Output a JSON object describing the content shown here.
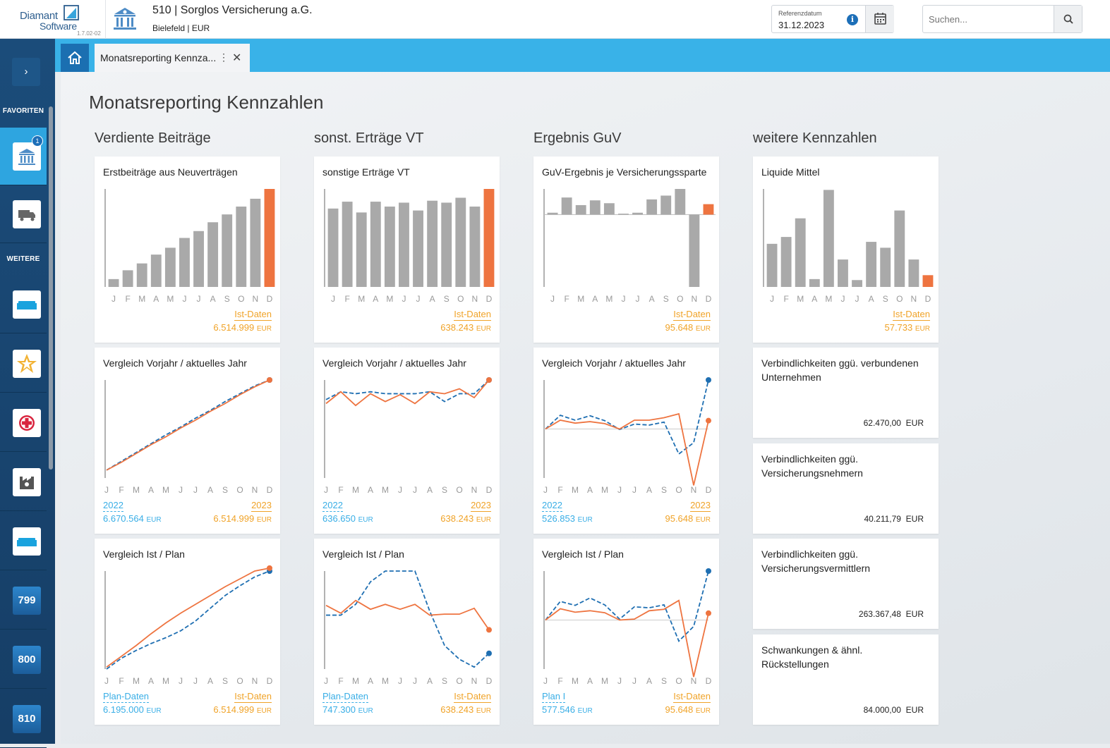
{
  "header": {
    "logo_line1": "Diamant",
    "logo_line2": "Software",
    "version": "1.7.02-02",
    "company_title": "510 | Sorglos Versicherung a.G.",
    "company_sub": "Bielefeld | EUR",
    "ref_label": "Referenzdatum",
    "ref_value": "31.12.2023",
    "search_placeholder": "Suchen..."
  },
  "sidebar": {
    "favorites": "FAVORITEN",
    "more": "WEITERE",
    "badge": "1",
    "tiles": [
      "799",
      "800",
      "810"
    ]
  },
  "tabs": {
    "doc_tab": "Monatsreporting Kennza..."
  },
  "page": {
    "title": "Monatsreporting Kennzahlen",
    "columns": [
      "Verdiente Beiträge",
      "sonst. Erträge VT",
      "Ergebnis GuV",
      "weitere Kennzahlen"
    ]
  },
  "months": [
    "J",
    "F",
    "M",
    "A",
    "M",
    "J",
    "J",
    "A",
    "S",
    "O",
    "N",
    "D"
  ],
  "colors": {
    "gray_bar": "#a9a9a9",
    "orange": "#ee7440",
    "blue": "#1f6fb2",
    "cyan_label": "#39aee6",
    "gold_label": "#f0a328"
  },
  "cards": {
    "c1_bar": {
      "title": "Erstbeiträge aus Neuverträgen",
      "legend": "Ist-Daten",
      "value": "6.514.999",
      "unit": "EUR"
    },
    "c1_vj": {
      "title": "Vergleich Vorjahr / aktuelles Jahr",
      "left_label": "2022",
      "left_value": "6.670.564",
      "right_label": "2023",
      "right_value": "6.514.999",
      "unit": "EUR"
    },
    "c1_ip": {
      "title": "Vergleich Ist / Plan",
      "left_label": "Plan-Daten",
      "left_value": "6.195.000",
      "right_label": "Ist-Daten",
      "right_value": "6.514.999",
      "unit": "EUR"
    },
    "c2_bar": {
      "title": "sonstige Erträge VT",
      "legend": "Ist-Daten",
      "value": "638.243",
      "unit": "EUR"
    },
    "c2_vj": {
      "title": "Vergleich Vorjahr / aktuelles Jahr",
      "left_label": "2022",
      "left_value": "636.650",
      "right_label": "2023",
      "right_value": "638.243",
      "unit": "EUR"
    },
    "c2_ip": {
      "title": "Vergleich Ist / Plan",
      "left_label": "Plan-Daten",
      "left_value": "747.300",
      "right_label": "Ist-Daten",
      "right_value": "638.243",
      "unit": "EUR"
    },
    "c3_bar": {
      "title": "GuV-Ergebnis je Versicherungssparte",
      "legend": "Ist-Daten",
      "value": "95.648",
      "unit": "EUR"
    },
    "c3_vj": {
      "title": "Vergleich Vorjahr / aktuelles Jahr",
      "left_label": "2022",
      "left_value": "526.853",
      "right_label": "2023",
      "right_value": "95.648",
      "unit": "EUR"
    },
    "c3_ip": {
      "title": "Vergleich Ist / Plan",
      "left_label": "Plan I",
      "left_value": "577.546",
      "right_label": "Ist-Daten",
      "right_value": "95.648",
      "unit": "EUR"
    },
    "c4_bar": {
      "title": "Liquide Mittel",
      "legend": "Ist-Daten",
      "value": "57.733",
      "unit": "EUR"
    },
    "k1": {
      "title": "Verbindlichkeiten ggü. verbundenen Unternehmen",
      "value": "62.470,00",
      "unit": "EUR"
    },
    "k2": {
      "title": "Verbindlichkeiten ggü. Versicherungsnehmern",
      "value": "40.211,79",
      "unit": "EUR"
    },
    "k3": {
      "title": "Verbindlichkeiten ggü. Versicherungsvermittlern",
      "value": "263.367,48",
      "unit": "EUR"
    },
    "k4": {
      "title": "Schwankungen & ähnl. Rückstellungen",
      "value": "84.000,00",
      "unit": "EUR"
    }
  },
  "chart_data": [
    {
      "id": "c1_bar",
      "type": "bar",
      "title": "Erstbeiträge aus Neuverträgen",
      "categories": [
        "J",
        "F",
        "M",
        "A",
        "M",
        "J",
        "J",
        "A",
        "S",
        "O",
        "N",
        "D"
      ],
      "values": [
        8,
        17,
        24,
        33,
        40,
        50,
        57,
        66,
        74,
        82,
        90,
        100
      ],
      "ylim": [
        0,
        100
      ],
      "highlight_last": true,
      "legend": "Ist-Daten"
    },
    {
      "id": "c2_bar",
      "type": "bar",
      "title": "sonstige Erträge VT",
      "categories": [
        "J",
        "F",
        "M",
        "A",
        "M",
        "J",
        "J",
        "A",
        "S",
        "O",
        "N",
        "D"
      ],
      "values": [
        80,
        87,
        76,
        87,
        82,
        86,
        78,
        88,
        86,
        91,
        82,
        100
      ],
      "ylim": [
        0,
        100
      ],
      "highlight_last": true,
      "legend": "Ist-Daten"
    },
    {
      "id": "c3_bar",
      "type": "bar",
      "title": "GuV-Ergebnis je Versicherungssparte",
      "categories": [
        "J",
        "F",
        "M",
        "A",
        "M",
        "J",
        "J",
        "A",
        "S",
        "O",
        "N",
        "D"
      ],
      "values": [
        2,
        18,
        10,
        15,
        12,
        1,
        2,
        16,
        20,
        27,
        -76,
        11
      ],
      "ylim": [
        -76,
        27
      ],
      "highlight_last": true,
      "legend": "Ist-Daten"
    },
    {
      "id": "c4_bar",
      "type": "bar",
      "title": "Liquide Mittel",
      "categories": [
        "J",
        "F",
        "M",
        "A",
        "M",
        "J",
        "J",
        "A",
        "S",
        "O",
        "N",
        "D"
      ],
      "values": [
        44,
        51,
        70,
        8,
        99,
        28,
        7,
        46,
        40,
        78,
        28,
        12
      ],
      "ylim": [
        0,
        100
      ],
      "highlight_last": true,
      "legend": "Ist-Daten"
    },
    {
      "id": "c1_vj",
      "type": "line",
      "title": "Vergleich Vorjahr / aktuelles Jahr",
      "categories": [
        "J",
        "F",
        "M",
        "A",
        "M",
        "J",
        "J",
        "A",
        "S",
        "O",
        "N",
        "D"
      ],
      "ylim": [
        0,
        100
      ],
      "series": [
        {
          "name": "2022",
          "style": "dashed",
          "values": [
            8,
            17,
            26,
            35,
            44,
            52,
            61,
            69,
            78,
            86,
            94,
            100
          ]
        },
        {
          "name": "2023",
          "style": "solid",
          "values": [
            8,
            16,
            25,
            34,
            42,
            51,
            59,
            68,
            76,
            85,
            93,
            100
          ]
        }
      ]
    },
    {
      "id": "c2_vj",
      "type": "line",
      "title": "Vergleich Vorjahr / aktuelles Jahr",
      "categories": [
        "J",
        "F",
        "M",
        "A",
        "M",
        "J",
        "J",
        "A",
        "S",
        "O",
        "N",
        "D"
      ],
      "ylim": [
        0,
        100
      ],
      "series": [
        {
          "name": "2022",
          "style": "dashed",
          "values": [
            80,
            88,
            86,
            88,
            86,
            86,
            86,
            88,
            78,
            86,
            86,
            100
          ]
        },
        {
          "name": "2023",
          "style": "solid",
          "values": [
            76,
            88,
            74,
            86,
            78,
            85,
            76,
            88,
            86,
            91,
            82,
            100
          ]
        }
      ]
    },
    {
      "id": "c3_vj",
      "type": "line",
      "title": "Vergleich Vorjahr / aktuelles Jahr",
      "categories": [
        "J",
        "F",
        "M",
        "A",
        "M",
        "J",
        "J",
        "A",
        "S",
        "O",
        "N",
        "D"
      ],
      "ylim": [
        -100,
        100
      ],
      "zero_line": true,
      "series": [
        {
          "name": "2022",
          "style": "dashed",
          "values": [
            0,
            28,
            18,
            27,
            17,
            -1,
            10,
            8,
            14,
            -51,
            -28,
            100
          ]
        },
        {
          "name": "2023",
          "style": "solid",
          "values": [
            0,
            18,
            12,
            15,
            11,
            0,
            18,
            18,
            23,
            31,
            -115,
            17
          ]
        }
      ]
    },
    {
      "id": "c1_ip",
      "type": "line",
      "title": "Vergleich Ist / Plan",
      "categories": [
        "J",
        "F",
        "M",
        "A",
        "M",
        "J",
        "J",
        "A",
        "S",
        "O",
        "N",
        "D"
      ],
      "ylim": [
        0,
        100
      ],
      "series": [
        {
          "name": "Plan-Daten",
          "style": "dashed",
          "values": [
            0,
            11,
            19,
            26,
            32,
            39,
            49,
            62,
            75,
            85,
            94,
            100
          ]
        },
        {
          "name": "Ist-Daten",
          "style": "solid",
          "values": [
            2,
            13,
            24,
            36,
            47,
            57,
            66,
            75,
            84,
            92,
            100,
            103
          ]
        }
      ]
    },
    {
      "id": "c2_ip",
      "type": "line",
      "title": "Vergleich Ist / Plan",
      "categories": [
        "J",
        "F",
        "M",
        "A",
        "M",
        "J",
        "J",
        "A",
        "S",
        "O",
        "N",
        "D"
      ],
      "ylim": [
        0,
        100
      ],
      "series": [
        {
          "name": "Plan-Daten",
          "style": "dashed",
          "values": [
            55,
            55,
            66,
            89,
            100,
            100,
            100,
            59,
            24,
            10,
            2,
            16
          ]
        },
        {
          "name": "Ist-Daten",
          "style": "solid",
          "values": [
            65,
            57,
            70,
            61,
            66,
            61,
            66,
            55,
            56,
            56,
            62,
            40
          ]
        }
      ]
    },
    {
      "id": "c3_ip",
      "type": "line",
      "title": "Vergleich Ist / Plan",
      "categories": [
        "J",
        "F",
        "M",
        "A",
        "M",
        "J",
        "J",
        "A",
        "S",
        "O",
        "N",
        "D"
      ],
      "ylim": [
        -100,
        100
      ],
      "zero_line": true,
      "series": [
        {
          "name": "Plan I",
          "style": "dashed",
          "values": [
            0,
            38,
            30,
            45,
            31,
            2,
            27,
            25,
            31,
            -43,
            -13,
            100
          ]
        },
        {
          "name": "Ist-Daten",
          "style": "solid",
          "values": [
            0,
            23,
            16,
            19,
            15,
            0,
            2,
            19,
            22,
            40,
            -116,
            14
          ]
        }
      ]
    }
  ]
}
